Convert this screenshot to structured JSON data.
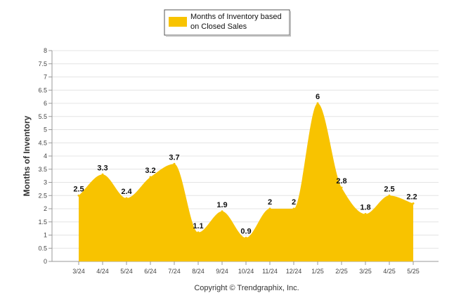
{
  "chart_data": {
    "type": "area",
    "categories": [
      "3/24",
      "4/24",
      "5/24",
      "6/24",
      "7/24",
      "8/24",
      "9/24",
      "10/24",
      "11/24",
      "12/24",
      "1/25",
      "2/25",
      "3/25",
      "4/25",
      "5/25"
    ],
    "series": [
      {
        "name": "Months of Inventory based on Closed Sales",
        "values": [
          2.5,
          3.3,
          2.4,
          3.2,
          3.7,
          1.1,
          1.9,
          0.9,
          2,
          2,
          6,
          2.8,
          1.8,
          2.5,
          2.2
        ],
        "color": "#F8C300"
      }
    ],
    "data_labels": [
      "2.5",
      "3.3",
      "2.4",
      "3.2",
      "3.7",
      "1.1",
      "1.9",
      "0.9",
      "2",
      "2",
      "6",
      "2.8",
      "1.8",
      "2.5",
      "2.2"
    ],
    "y_ticks": [
      "0",
      "0.5",
      "1",
      "1.5",
      "2",
      "2.5",
      "3",
      "3.5",
      "4",
      "4.5",
      "5",
      "5.5",
      "6",
      "6.5",
      "7",
      "7.5",
      "8"
    ],
    "ylim": [
      0,
      8
    ],
    "ylabel": "Months of Inventory",
    "xlabel": "",
    "legend": {
      "line1": "Months of Inventory based",
      "line2": "on Closed Sales",
      "placement": "top-center"
    },
    "grid": true,
    "credit": "Copyright © Trendgraphix, Inc."
  }
}
